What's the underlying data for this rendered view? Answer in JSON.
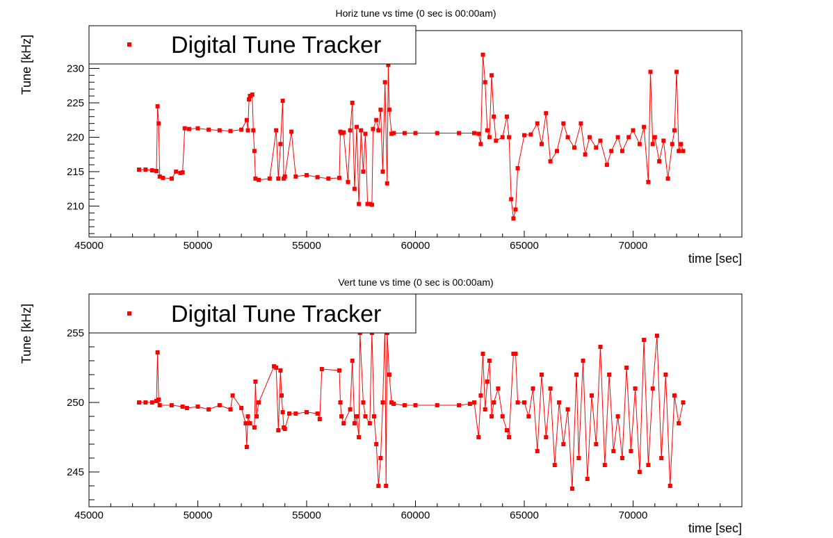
{
  "chart_data": [
    {
      "type": "line",
      "title": "Horiz tune vs time (0 sec is 00:00am)",
      "xlabel": "time [sec]",
      "ylabel": "Tune [kHz]",
      "xlim": [
        45000,
        75000
      ],
      "ylim": [
        205.5,
        235.5
      ],
      "x_ticks": [
        45000,
        50000,
        55000,
        60000,
        65000,
        70000
      ],
      "y_ticks": [
        210,
        215,
        220,
        225,
        230
      ],
      "grid": false,
      "legend_position": "top-left",
      "series": [
        {
          "name": "Digital Tune Tracker",
          "color": "#ff0000",
          "marker": "square",
          "x": [
            47300,
            47600,
            47900,
            48100,
            48150,
            48200,
            48250,
            48400,
            48800,
            49000,
            49200,
            49300,
            49400,
            49600,
            50000,
            50500,
            51000,
            51500,
            52000,
            52250,
            52300,
            52350,
            52400,
            52500,
            52550,
            52600,
            52650,
            52800,
            53300,
            53600,
            53700,
            53800,
            53900,
            53950,
            54000,
            54300,
            54500,
            55000,
            55500,
            56000,
            56500,
            56550,
            56600,
            56700,
            56900,
            57000,
            57100,
            57200,
            57300,
            57400,
            57500,
            57600,
            57700,
            57800,
            57900,
            58000,
            58050,
            58200,
            58300,
            58400,
            58500,
            58600,
            58700,
            58750,
            58800,
            58900,
            59000,
            59500,
            60000,
            61000,
            62000,
            62700,
            62900,
            63000,
            63100,
            63200,
            63300,
            63400,
            63500,
            63600,
            63700,
            64000,
            64200,
            64300,
            64400,
            64500,
            64600,
            64700,
            65000,
            65300,
            65600,
            65800,
            66000,
            66200,
            66500,
            66800,
            67000,
            67300,
            67600,
            67800,
            68000,
            68300,
            68500,
            68800,
            69000,
            69300,
            69500,
            69800,
            70000,
            70300,
            70500,
            70700,
            70800,
            70900,
            71000,
            71200,
            71400,
            71600,
            71800,
            71900,
            72000,
            72100,
            72200,
            72300
          ],
          "y": [
            215.3,
            215.3,
            215.2,
            215.1,
            224.5,
            222.0,
            214.3,
            214.1,
            214.0,
            215.0,
            214.8,
            214.9,
            221.3,
            221.2,
            221.3,
            221.1,
            221.0,
            220.9,
            221.1,
            222.5,
            221.0,
            225.5,
            226.0,
            226.2,
            221.0,
            218.0,
            214.0,
            213.8,
            214.0,
            221.0,
            214.0,
            219.0,
            225.3,
            214.0,
            214.3,
            220.8,
            214.3,
            214.5,
            214.2,
            214.0,
            214.1,
            220.8,
            220.6,
            220.7,
            213.5,
            221.0,
            225.0,
            212.5,
            221.5,
            210.3,
            221.0,
            215.0,
            220.5,
            210.3,
            210.3,
            210.2,
            221.2,
            222.5,
            221.0,
            224.0,
            215.0,
            228.0,
            213.3,
            230.5,
            224.0,
            220.5,
            220.6,
            220.6,
            220.6,
            220.6,
            220.6,
            220.6,
            220.5,
            219.0,
            232.0,
            228.0,
            221.0,
            220.0,
            229.0,
            223.0,
            219.5,
            220.0,
            223.0,
            220.0,
            211.0,
            208.2,
            209.5,
            215.5,
            220.3,
            220.4,
            222.0,
            219.0,
            223.5,
            216.5,
            218.0,
            222.0,
            220.0,
            218.5,
            222.0,
            217.5,
            220.0,
            218.5,
            219.5,
            216.0,
            218.0,
            220.0,
            218.0,
            220.0,
            221.0,
            219.0,
            221.5,
            213.5,
            229.5,
            219.0,
            220.0,
            216.5,
            219.5,
            214.0,
            219.0,
            221.0,
            229.5,
            218.0,
            219.0,
            218.0
          ]
        }
      ]
    },
    {
      "type": "line",
      "title": "Vert tune vs time (0 sec is 00:00am)",
      "xlabel": "time [sec]",
      "ylabel": "Tune [kHz]",
      "xlim": [
        45000,
        75000
      ],
      "ylim": [
        242.5,
        257.8
      ],
      "x_ticks": [
        45000,
        50000,
        55000,
        60000,
        65000,
        70000
      ],
      "y_ticks": [
        245,
        250,
        255
      ],
      "grid": false,
      "legend_position": "top-left",
      "series": [
        {
          "name": "Digital Tune Tracker",
          "color": "#ff0000",
          "marker": "square",
          "x": [
            47300,
            47600,
            47900,
            48100,
            48150,
            48200,
            48250,
            48800,
            49300,
            49500,
            50000,
            50500,
            51000,
            51500,
            51600,
            52000,
            52200,
            52250,
            52300,
            52400,
            52600,
            52650,
            52700,
            52800,
            53500,
            53600,
            53700,
            53800,
            53850,
            53900,
            53950,
            54000,
            54200,
            54500,
            55000,
            55500,
            55600,
            55700,
            56500,
            56550,
            56600,
            56700,
            57000,
            57100,
            57200,
            57300,
            57400,
            57450,
            57600,
            57700,
            57900,
            58000,
            58100,
            58200,
            58300,
            58400,
            58500,
            58600,
            58650,
            58700,
            58800,
            58900,
            59000,
            59500,
            60000,
            61000,
            62000,
            62500,
            62700,
            62900,
            63000,
            63100,
            63200,
            63300,
            63400,
            63500,
            63600,
            63800,
            64000,
            64200,
            64300,
            64500,
            64600,
            64700,
            65000,
            65200,
            65400,
            65600,
            65800,
            66000,
            66200,
            66400,
            66600,
            66800,
            67000,
            67200,
            67400,
            67500,
            67700,
            67900,
            68100,
            68300,
            68500,
            68700,
            68900,
            69100,
            69300,
            69500,
            69700,
            69900,
            70100,
            70300,
            70500,
            70700,
            70900,
            71100,
            71300,
            71500,
            71700,
            71900,
            72100,
            72300
          ],
          "y": [
            250.0,
            250.0,
            250.0,
            250.1,
            253.6,
            250.2,
            249.8,
            249.8,
            249.7,
            249.6,
            249.7,
            249.5,
            249.8,
            249.5,
            250.5,
            249.6,
            248.5,
            246.8,
            249.0,
            248.5,
            248.2,
            251.5,
            249.0,
            250.0,
            252.6,
            252.5,
            248.0,
            252.3,
            250.5,
            249.3,
            248.2,
            248.1,
            249.2,
            249.2,
            249.3,
            249.2,
            248.8,
            252.4,
            252.3,
            250.0,
            249.0,
            248.5,
            249.5,
            253.0,
            248.5,
            249.0,
            247.5,
            255.0,
            250.0,
            249.0,
            248.5,
            255.0,
            249.0,
            247.0,
            244.0,
            246.0,
            250.0,
            255.5,
            244.0,
            255.0,
            252.0,
            250.0,
            249.9,
            249.8,
            249.8,
            249.8,
            249.8,
            249.9,
            250.0,
            247.5,
            250.5,
            253.5,
            249.5,
            251.5,
            253.0,
            249.0,
            250.0,
            251.0,
            249.0,
            248.0,
            247.5,
            253.5,
            253.5,
            250.0,
            250.0,
            249.0,
            251.0,
            246.5,
            252.0,
            247.5,
            251.0,
            245.5,
            250.0,
            247.0,
            249.5,
            243.8,
            252.0,
            246.0,
            253.0,
            244.5,
            250.5,
            247.0,
            254.0,
            245.5,
            252.0,
            246.5,
            249.0,
            246.0,
            252.5,
            246.5,
            251.0,
            245.0,
            254.5,
            245.5,
            251.0,
            254.8,
            246.0,
            252.0,
            244.0,
            250.5,
            248.5,
            250.0
          ]
        }
      ]
    }
  ]
}
